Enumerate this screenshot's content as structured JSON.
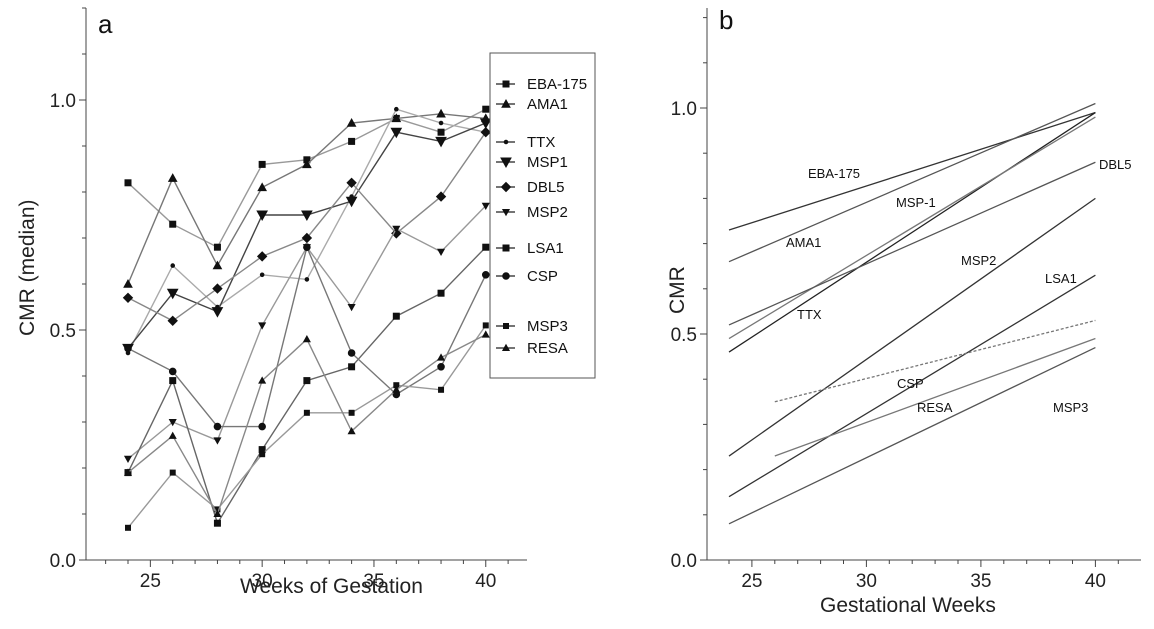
{
  "chart_data": [
    {
      "panel": "a",
      "type": "line",
      "xlabel": "Weeks of  Gestation",
      "ylabel": "CMR  (median)",
      "xlim": [
        23,
        42
      ],
      "ylim": [
        0,
        1.2
      ],
      "xticks": [
        25,
        30,
        35,
        40
      ],
      "yticks": [
        0.0,
        0.5,
        1.0
      ],
      "yticklabels": [
        "0.0",
        "0.5",
        "1.0"
      ],
      "legend_position": "right",
      "x": [
        24,
        26,
        28,
        30,
        32,
        34,
        36,
        38,
        40
      ],
      "series": [
        {
          "name": "EBA-175",
          "marker": "square",
          "color": "#999999",
          "values": [
            0.82,
            0.73,
            0.68,
            0.86,
            0.87,
            0.91,
            0.96,
            0.93,
            0.98
          ]
        },
        {
          "name": "AMA1",
          "marker": "triangle",
          "color": "#777777",
          "values": [
            0.6,
            0.83,
            0.64,
            0.81,
            0.86,
            0.95,
            0.96,
            0.97,
            0.96
          ]
        },
        {
          "name": "TTX",
          "marker": "dot",
          "color": "#aaaaaa",
          "values": [
            0.45,
            0.64,
            0.55,
            0.62,
            0.61,
            0.79,
            0.98,
            0.95,
            0.93
          ]
        },
        {
          "name": "MSP1",
          "marker": "triangle-down",
          "color": "#444444",
          "values": [
            0.46,
            0.58,
            0.54,
            0.75,
            0.75,
            0.78,
            0.93,
            0.91,
            0.95
          ]
        },
        {
          "name": "DBL5",
          "marker": "diamond",
          "color": "#888888",
          "values": [
            0.57,
            0.52,
            0.59,
            0.66,
            0.7,
            0.82,
            0.71,
            0.79,
            0.93
          ]
        },
        {
          "name": "MSP2",
          "marker": "triangle-down-small",
          "color": "#999999",
          "values": [
            0.22,
            0.3,
            0.26,
            0.51,
            0.68,
            0.55,
            0.72,
            0.67,
            0.77
          ]
        },
        {
          "name": "LSA1",
          "marker": "square",
          "color": "#666666",
          "values": [
            0.19,
            0.39,
            0.08,
            0.24,
            0.39,
            0.42,
            0.53,
            0.58,
            0.68
          ]
        },
        {
          "name": "CSP",
          "marker": "circle",
          "color": "#777777",
          "values": [
            0.46,
            0.41,
            0.29,
            0.29,
            0.68,
            0.45,
            0.36,
            0.42,
            0.62
          ]
        },
        {
          "name": "MSP3",
          "marker": "square-small",
          "color": "#999999",
          "values": [
            0.07,
            0.19,
            0.11,
            0.23,
            0.32,
            0.32,
            0.38,
            0.37,
            0.51
          ]
        },
        {
          "name": "RESA",
          "marker": "triangle-small",
          "color": "#888888",
          "values": [
            0.19,
            0.27,
            0.1,
            0.39,
            0.48,
            0.28,
            0.37,
            0.44,
            0.49
          ]
        }
      ]
    },
    {
      "panel": "b",
      "type": "line",
      "xlabel": "Gestational Weeks",
      "ylabel": "CMR",
      "xlim": [
        23,
        42
      ],
      "ylim": [
        0,
        1.2
      ],
      "xticks": [
        25,
        30,
        35,
        40
      ],
      "yticks": [
        0.0,
        0.5,
        1.0
      ],
      "yticklabels": [
        "0.0",
        "0.5",
        "1.0"
      ],
      "series": [
        {
          "name": "EBA-175",
          "label": "EBA-175",
          "x": [
            24,
            40
          ],
          "values": [
            0.73,
            0.99
          ],
          "color": "#333333",
          "dashed": false
        },
        {
          "name": "AMA1",
          "label": "AMA1",
          "x": [
            24,
            40
          ],
          "values": [
            0.66,
            1.01
          ],
          "color": "#555555",
          "dashed": false
        },
        {
          "name": "MSP-1",
          "label": "MSP-1",
          "x": [
            24,
            40
          ],
          "values": [
            0.46,
            0.99
          ],
          "color": "#222222",
          "dashed": false
        },
        {
          "name": "TTX",
          "label": "TTX",
          "x": [
            24,
            40
          ],
          "values": [
            0.49,
            0.98
          ],
          "color": "#777777",
          "dashed": false
        },
        {
          "name": "DBL5",
          "label": "DBL5",
          "x": [
            24,
            40
          ],
          "values": [
            0.52,
            0.88
          ],
          "color": "#555555",
          "dashed": false
        },
        {
          "name": "MSP2",
          "label": "MSP2",
          "x": [
            24,
            40
          ],
          "values": [
            0.23,
            0.8
          ],
          "color": "#333333",
          "dashed": false
        },
        {
          "name": "LSA1",
          "label": "LSA1",
          "x": [
            24,
            40
          ],
          "values": [
            0.14,
            0.63
          ],
          "color": "#333333",
          "dashed": false
        },
        {
          "name": "CSP",
          "label": "CSP",
          "x": [
            26,
            40
          ],
          "values": [
            0.35,
            0.53
          ],
          "color": "#777777",
          "dashed": true
        },
        {
          "name": "RESA",
          "label": "RESA",
          "x": [
            26,
            40
          ],
          "values": [
            0.23,
            0.49
          ],
          "color": "#777777",
          "dashed": false
        },
        {
          "name": "MSP3",
          "label": "MSP3",
          "x": [
            24,
            40
          ],
          "values": [
            0.08,
            0.47
          ],
          "color": "#555555",
          "dashed": false
        }
      ]
    }
  ]
}
